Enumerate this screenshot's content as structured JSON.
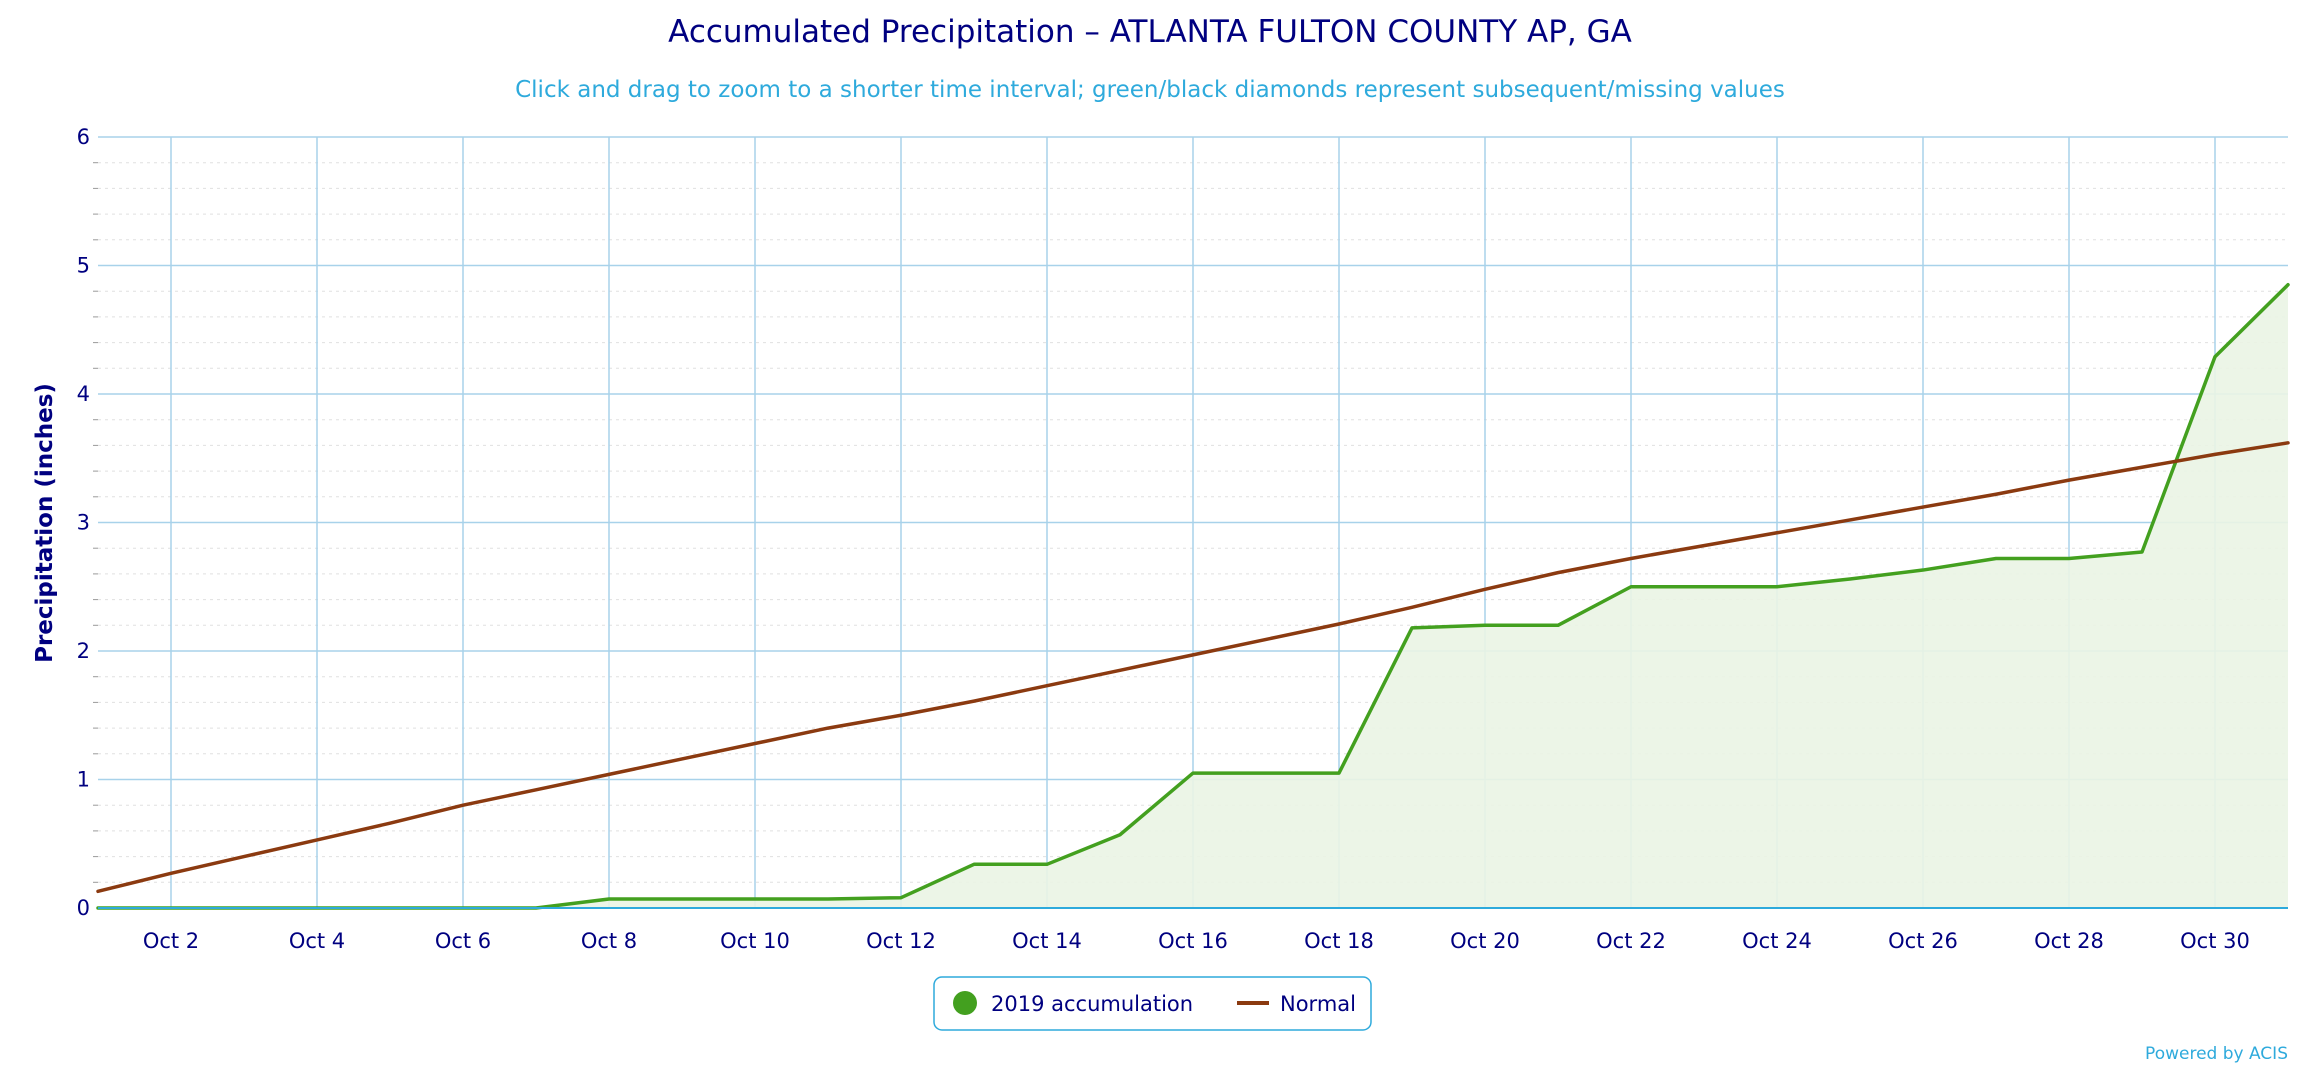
{
  "chart_data": {
    "type": "line",
    "title": "Accumulated Precipitation – ATLANTA FULTON COUNTY AP, GA",
    "subtitle": "Click and drag to zoom to a shorter time interval; green/black diamonds represent subsequent/missing values",
    "ylabel": "Precipitation (inches)",
    "xlabel": "",
    "ylim": [
      0,
      6
    ],
    "yticks": [
      "0",
      "1",
      "2",
      "3",
      "4",
      "5",
      "6"
    ],
    "xlim_days": [
      1,
      31
    ],
    "xticks": [
      {
        "day": 2,
        "label": "Oct 2"
      },
      {
        "day": 4,
        "label": "Oct 4"
      },
      {
        "day": 6,
        "label": "Oct 6"
      },
      {
        "day": 8,
        "label": "Oct 8"
      },
      {
        "day": 10,
        "label": "Oct 10"
      },
      {
        "day": 12,
        "label": "Oct 12"
      },
      {
        "day": 14,
        "label": "Oct 14"
      },
      {
        "day": 16,
        "label": "Oct 16"
      },
      {
        "day": 18,
        "label": "Oct 18"
      },
      {
        "day": 20,
        "label": "Oct 20"
      },
      {
        "day": 22,
        "label": "Oct 22"
      },
      {
        "day": 24,
        "label": "Oct 24"
      },
      {
        "day": 26,
        "label": "Oct 26"
      },
      {
        "day": 28,
        "label": "Oct 28"
      },
      {
        "day": 30,
        "label": "Oct 30"
      }
    ],
    "grid": true,
    "legend_position": "bottom-center",
    "series": [
      {
        "name": "2019 accumulation",
        "color": "#43a01f",
        "fill": "#eaf4e4",
        "area": true,
        "x": [
          1,
          2,
          3,
          4,
          5,
          6,
          7,
          8,
          9,
          10,
          11,
          12,
          13,
          14,
          15,
          16,
          17,
          18,
          19,
          20,
          21,
          22,
          23,
          24,
          25,
          26,
          27,
          28,
          29,
          30,
          31
        ],
        "values": [
          0,
          0,
          0,
          0,
          0,
          0,
          0,
          0.07,
          0.07,
          0.07,
          0.07,
          0.08,
          0.34,
          0.34,
          0.57,
          1.05,
          1.05,
          1.05,
          2.18,
          2.2,
          2.2,
          2.5,
          2.5,
          2.5,
          2.56,
          2.63,
          2.72,
          2.72,
          2.77,
          4.29,
          4.85
        ]
      },
      {
        "name": "Normal",
        "color": "#8b3a10",
        "area": false,
        "x": [
          1,
          2,
          3,
          4,
          5,
          6,
          7,
          8,
          9,
          10,
          11,
          12,
          13,
          14,
          15,
          16,
          17,
          18,
          19,
          20,
          21,
          22,
          23,
          24,
          25,
          26,
          27,
          28,
          29,
          30,
          31
        ],
        "values": [
          0.13,
          0.27,
          0.4,
          0.53,
          0.66,
          0.8,
          0.92,
          1.04,
          1.16,
          1.28,
          1.4,
          1.5,
          1.61,
          1.73,
          1.85,
          1.97,
          2.09,
          2.21,
          2.34,
          2.48,
          2.61,
          2.72,
          2.82,
          2.92,
          3.02,
          3.12,
          3.22,
          3.33,
          3.43,
          3.53,
          3.62
        ]
      }
    ],
    "credit": "Powered by ACIS"
  }
}
